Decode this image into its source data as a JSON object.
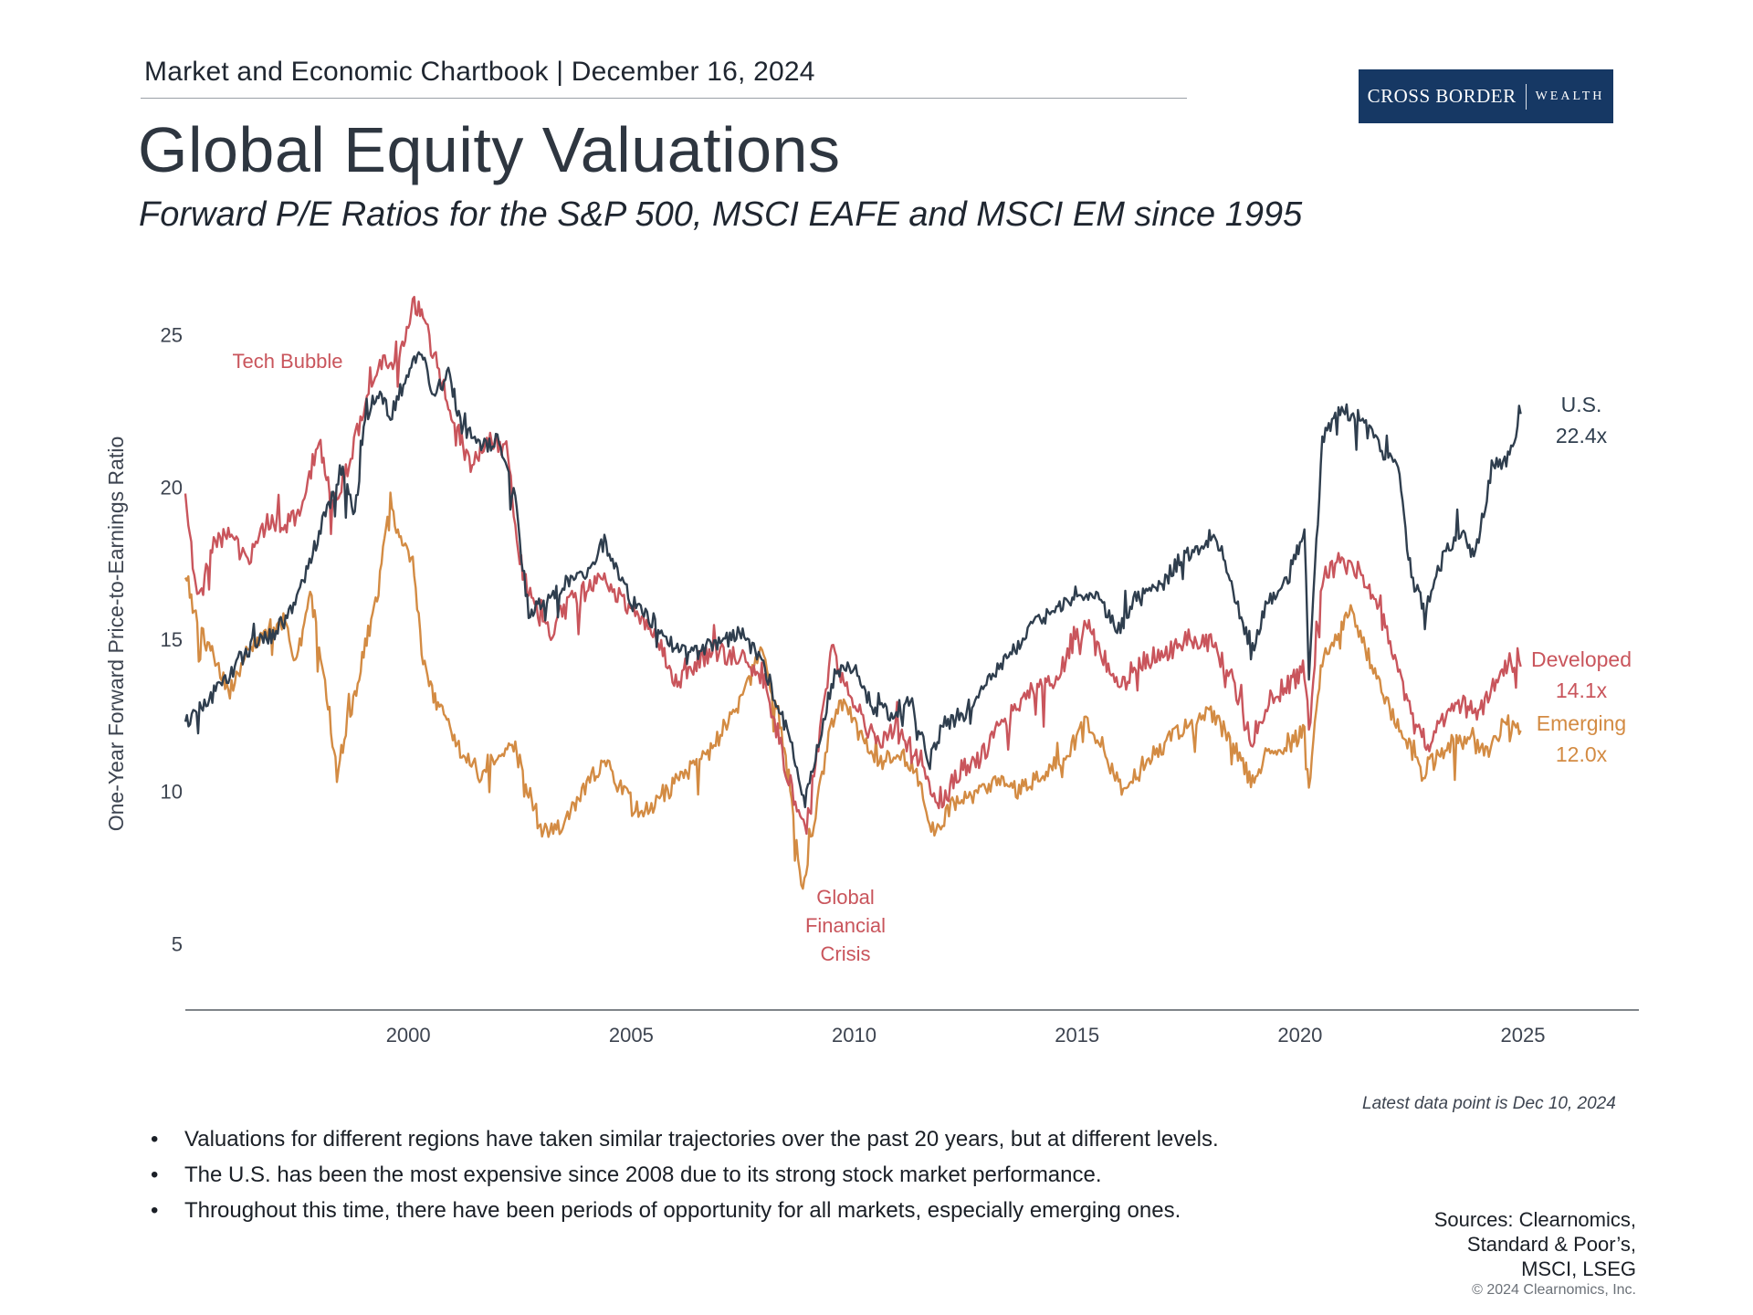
{
  "header": {
    "chartbook": "Market and Economic Chartbook | December 16, 2024",
    "title": "Global Equity Valuations",
    "subtitle": "Forward P/E Ratios for the S&P 500, MSCI EAFE and MSCI EM since 1995"
  },
  "brand": {
    "name": "CROSS BORDER",
    "tag": "WEALTH",
    "color": "#163864"
  },
  "chart_data": {
    "type": "line",
    "title": "Global Equity Valuations",
    "xlabel": "",
    "ylabel": "One-Year Forward Price-to-Earnings Ratio",
    "xlim": [
      1995,
      2027.6
    ],
    "ylim": [
      3,
      27
    ],
    "xticks": [
      2000,
      2005,
      2010,
      2015,
      2020,
      2025
    ],
    "yticks": [
      5,
      10,
      15,
      20,
      25
    ],
    "grid": false,
    "series": [
      {
        "name": "U.S.",
        "end_label": "22.4x",
        "color": "#2f3e4e",
        "points": [
          [
            1995.0,
            12.2
          ],
          [
            1995.5,
            13.0
          ],
          [
            1996.0,
            13.8
          ],
          [
            1996.5,
            14.8
          ],
          [
            1997.0,
            15.2
          ],
          [
            1997.5,
            16.2
          ],
          [
            1998.0,
            18.5
          ],
          [
            1998.5,
            20.6
          ],
          [
            1998.8,
            19.0
          ],
          [
            1999.0,
            21.8
          ],
          [
            1999.3,
            23.2
          ],
          [
            1999.6,
            22.3
          ],
          [
            2000.0,
            23.8
          ],
          [
            2000.3,
            24.3
          ],
          [
            2000.6,
            23.0
          ],
          [
            2000.9,
            23.8
          ],
          [
            2001.2,
            22.0
          ],
          [
            2001.6,
            21.3
          ],
          [
            2002.0,
            21.5
          ],
          [
            2002.4,
            19.5
          ],
          [
            2002.7,
            15.8
          ],
          [
            2003.0,
            16.3
          ],
          [
            2003.5,
            16.8
          ],
          [
            2004.0,
            17.2
          ],
          [
            2004.4,
            18.2
          ],
          [
            2004.8,
            17.0
          ],
          [
            2005.0,
            16.2
          ],
          [
            2005.5,
            15.6
          ],
          [
            2006.0,
            14.6
          ],
          [
            2006.5,
            14.6
          ],
          [
            2007.0,
            14.9
          ],
          [
            2007.5,
            15.2
          ],
          [
            2008.0,
            14.0
          ],
          [
            2008.5,
            12.0
          ],
          [
            2008.9,
            9.6
          ],
          [
            2009.2,
            11.5
          ],
          [
            2009.6,
            14.0
          ],
          [
            2010.0,
            14.0
          ],
          [
            2010.4,
            12.8
          ],
          [
            2010.8,
            12.6
          ],
          [
            2011.3,
            12.9
          ],
          [
            2011.7,
            11.0
          ],
          [
            2012.0,
            12.2
          ],
          [
            2012.5,
            12.6
          ],
          [
            2013.0,
            13.6
          ],
          [
            2013.5,
            14.5
          ],
          [
            2014.0,
            15.4
          ],
          [
            2014.5,
            16.0
          ],
          [
            2015.0,
            16.5
          ],
          [
            2015.5,
            16.4
          ],
          [
            2015.9,
            15.2
          ],
          [
            2016.3,
            16.3
          ],
          [
            2016.8,
            16.6
          ],
          [
            2017.3,
            17.6
          ],
          [
            2017.8,
            18.1
          ],
          [
            2018.1,
            18.5
          ],
          [
            2018.5,
            16.6
          ],
          [
            2018.9,
            14.6
          ],
          [
            2019.3,
            16.3
          ],
          [
            2019.8,
            17.2
          ],
          [
            2020.1,
            18.6
          ],
          [
            2020.2,
            13.6
          ],
          [
            2020.5,
            21.6
          ],
          [
            2020.9,
            22.6
          ],
          [
            2021.3,
            22.3
          ],
          [
            2021.8,
            21.3
          ],
          [
            2022.2,
            20.6
          ],
          [
            2022.5,
            17.0
          ],
          [
            2022.8,
            16.0
          ],
          [
            2023.2,
            17.6
          ],
          [
            2023.6,
            18.6
          ],
          [
            2023.9,
            17.6
          ],
          [
            2024.3,
            20.6
          ],
          [
            2024.7,
            21.0
          ],
          [
            2024.95,
            22.4
          ]
        ]
      },
      {
        "name": "Developed",
        "end_label": "14.1x",
        "color": "#c9555c",
        "points": [
          [
            1995.0,
            19.5
          ],
          [
            1995.3,
            16.2
          ],
          [
            1995.6,
            18.0
          ],
          [
            1996.0,
            18.6
          ],
          [
            1996.4,
            17.4
          ],
          [
            1996.8,
            18.9
          ],
          [
            1997.2,
            18.6
          ],
          [
            1997.6,
            19.3
          ],
          [
            1998.0,
            21.6
          ],
          [
            1998.3,
            19.6
          ],
          [
            1998.6,
            20.4
          ],
          [
            1999.0,
            22.6
          ],
          [
            1999.4,
            24.0
          ],
          [
            1999.8,
            24.3
          ],
          [
            2000.1,
            26.1
          ],
          [
            2000.4,
            25.3
          ],
          [
            2000.8,
            23.2
          ],
          [
            2001.1,
            22.0
          ],
          [
            2001.4,
            20.6
          ],
          [
            2001.8,
            21.6
          ],
          [
            2002.2,
            21.3
          ],
          [
            2002.5,
            17.6
          ],
          [
            2002.8,
            16.0
          ],
          [
            2003.2,
            15.3
          ],
          [
            2003.6,
            16.3
          ],
          [
            2004.0,
            16.6
          ],
          [
            2004.4,
            17.0
          ],
          [
            2004.8,
            16.3
          ],
          [
            2005.2,
            15.6
          ],
          [
            2005.6,
            15.0
          ],
          [
            2006.0,
            13.6
          ],
          [
            2006.5,
            14.3
          ],
          [
            2007.0,
            14.6
          ],
          [
            2007.5,
            14.3
          ],
          [
            2008.0,
            13.6
          ],
          [
            2008.5,
            10.6
          ],
          [
            2008.9,
            8.6
          ],
          [
            2009.2,
            11.6
          ],
          [
            2009.5,
            14.6
          ],
          [
            2009.8,
            13.6
          ],
          [
            2010.2,
            12.3
          ],
          [
            2010.6,
            11.6
          ],
          [
            2011.0,
            12.3
          ],
          [
            2011.5,
            11.0
          ],
          [
            2011.9,
            9.5
          ],
          [
            2012.3,
            10.6
          ],
          [
            2012.8,
            11.0
          ],
          [
            2013.2,
            12.0
          ],
          [
            2013.6,
            12.6
          ],
          [
            2014.0,
            13.3
          ],
          [
            2014.5,
            13.6
          ],
          [
            2015.0,
            15.0
          ],
          [
            2015.3,
            15.6
          ],
          [
            2015.7,
            14.0
          ],
          [
            2016.1,
            13.6
          ],
          [
            2016.5,
            14.3
          ],
          [
            2017.0,
            14.6
          ],
          [
            2017.5,
            15.0
          ],
          [
            2018.0,
            14.9
          ],
          [
            2018.5,
            13.6
          ],
          [
            2018.9,
            11.6
          ],
          [
            2019.3,
            13.0
          ],
          [
            2019.8,
            13.6
          ],
          [
            2020.1,
            14.0
          ],
          [
            2020.2,
            12.0
          ],
          [
            2020.5,
            17.0
          ],
          [
            2020.9,
            17.6
          ],
          [
            2021.3,
            17.3
          ],
          [
            2021.7,
            16.3
          ],
          [
            2022.2,
            14.0
          ],
          [
            2022.6,
            12.0
          ],
          [
            2022.9,
            11.6
          ],
          [
            2023.3,
            12.6
          ],
          [
            2023.7,
            13.0
          ],
          [
            2024.0,
            12.6
          ],
          [
            2024.4,
            13.6
          ],
          [
            2024.7,
            14.3
          ],
          [
            2024.95,
            14.1
          ]
        ]
      },
      {
        "name": "Emerging",
        "end_label": "12.0x",
        "color": "#d38b43",
        "points": [
          [
            1995.0,
            17.2
          ],
          [
            1995.3,
            15.3
          ],
          [
            1995.6,
            14.6
          ],
          [
            1996.0,
            13.3
          ],
          [
            1996.4,
            14.6
          ],
          [
            1996.8,
            15.3
          ],
          [
            1997.2,
            15.6
          ],
          [
            1997.5,
            14.2
          ],
          [
            1997.8,
            16.6
          ],
          [
            1998.1,
            14.0
          ],
          [
            1998.4,
            10.6
          ],
          [
            1998.7,
            12.6
          ],
          [
            1999.0,
            14.6
          ],
          [
            1999.3,
            16.3
          ],
          [
            1999.6,
            19.6
          ],
          [
            1999.8,
            18.3
          ],
          [
            2000.1,
            17.6
          ],
          [
            2000.3,
            14.6
          ],
          [
            2000.6,
            13.0
          ],
          [
            2000.9,
            12.3
          ],
          [
            2001.2,
            11.3
          ],
          [
            2001.6,
            10.6
          ],
          [
            2002.0,
            11.3
          ],
          [
            2002.4,
            11.6
          ],
          [
            2002.7,
            10.0
          ],
          [
            2003.0,
            8.6
          ],
          [
            2003.5,
            8.9
          ],
          [
            2004.0,
            10.3
          ],
          [
            2004.4,
            11.0
          ],
          [
            2004.8,
            10.0
          ],
          [
            2005.2,
            9.3
          ],
          [
            2005.6,
            9.6
          ],
          [
            2006.0,
            10.3
          ],
          [
            2006.5,
            11.0
          ],
          [
            2007.0,
            12.0
          ],
          [
            2007.5,
            13.0
          ],
          [
            2007.9,
            14.6
          ],
          [
            2008.3,
            12.6
          ],
          [
            2008.6,
            9.6
          ],
          [
            2008.85,
            6.6
          ],
          [
            2009.1,
            9.0
          ],
          [
            2009.5,
            12.3
          ],
          [
            2009.8,
            13.0
          ],
          [
            2010.2,
            11.6
          ],
          [
            2010.6,
            11.0
          ],
          [
            2011.0,
            11.3
          ],
          [
            2011.4,
            10.6
          ],
          [
            2011.8,
            8.6
          ],
          [
            2012.2,
            9.6
          ],
          [
            2012.7,
            9.9
          ],
          [
            2013.2,
            10.3
          ],
          [
            2013.7,
            10.0
          ],
          [
            2014.2,
            10.6
          ],
          [
            2014.7,
            11.0
          ],
          [
            2015.2,
            12.3
          ],
          [
            2015.6,
            11.3
          ],
          [
            2016.0,
            10.0
          ],
          [
            2016.5,
            11.0
          ],
          [
            2017.0,
            11.6
          ],
          [
            2017.5,
            12.3
          ],
          [
            2018.0,
            12.6
          ],
          [
            2018.5,
            11.6
          ],
          [
            2018.9,
            10.3
          ],
          [
            2019.3,
            11.3
          ],
          [
            2019.8,
            11.6
          ],
          [
            2020.1,
            12.0
          ],
          [
            2020.2,
            10.3
          ],
          [
            2020.5,
            14.3
          ],
          [
            2020.9,
            15.3
          ],
          [
            2021.1,
            16.0
          ],
          [
            2021.5,
            14.6
          ],
          [
            2021.9,
            13.0
          ],
          [
            2022.3,
            12.0
          ],
          [
            2022.7,
            10.6
          ],
          [
            2023.0,
            11.0
          ],
          [
            2023.4,
            11.6
          ],
          [
            2023.8,
            11.6
          ],
          [
            2024.2,
            11.3
          ],
          [
            2024.6,
            12.3
          ],
          [
            2024.95,
            12.0
          ]
        ]
      }
    ],
    "annotations": [
      {
        "text": "Tech Bubble",
        "x": 1997.3,
        "y": 24.2,
        "color": "#c9555c"
      },
      {
        "lines": [
          "Global",
          "Financial",
          "Crisis"
        ],
        "x": 2008.8,
        "y": 6.0,
        "color": "#c9555c"
      }
    ]
  },
  "footer": {
    "latest": "Latest data point is Dec 10, 2024",
    "bullets": [
      "Valuations for different regions have taken similar trajectories over the past 20 years, but at different levels.",
      "The U.S. has been the most expensive since 2008 due to its strong stock market performance.",
      "Throughout this time, there have been periods of opportunity for all markets, especially emerging ones."
    ],
    "sources": [
      "Sources: Clearnomics,",
      "Standard & Poor’s,",
      "MSCI, LSEG"
    ],
    "copyright": "© 2024 Clearnomics, Inc."
  }
}
